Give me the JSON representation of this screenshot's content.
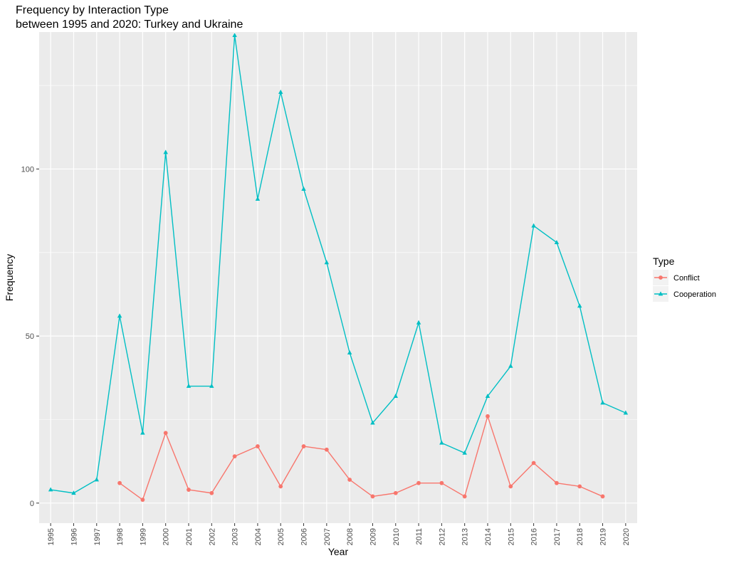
{
  "chart_data": {
    "type": "line",
    "title": "Frequency by Interaction Type",
    "subtitle": "between 1995 and 2020: Turkey and Ukraine",
    "xlabel": "Year",
    "ylabel": "Frequency",
    "ylim": [
      -6,
      141
    ],
    "y_ticks": [
      0,
      50,
      100
    ],
    "y_tick_labels": [
      "0",
      "50",
      "100"
    ],
    "grid": true,
    "legend_title": "Type",
    "legend_position": "right",
    "categories": [
      "1995",
      "1996",
      "1997",
      "1998",
      "1999",
      "2000",
      "2001",
      "2002",
      "2003",
      "2004",
      "2005",
      "2006",
      "2007",
      "2008",
      "2009",
      "2010",
      "2011",
      "2012",
      "2013",
      "2014",
      "2015",
      "2016",
      "2017",
      "2018",
      "2019",
      "2020"
    ],
    "series": [
      {
        "name": "Conflict",
        "color": "#f8766d",
        "marker": "circle",
        "values": [
          null,
          null,
          null,
          6,
          1,
          21,
          4,
          3,
          14,
          17,
          5,
          17,
          16,
          7,
          2,
          3,
          6,
          6,
          2,
          26,
          5,
          12,
          6,
          5,
          2,
          null
        ]
      },
      {
        "name": "Cooperation",
        "color": "#00bfc4",
        "marker": "triangle",
        "values": [
          4,
          3,
          7,
          56,
          21,
          105,
          35,
          35,
          140,
          91,
          123,
          94,
          72,
          45,
          24,
          32,
          54,
          18,
          15,
          32,
          41,
          83,
          78,
          59,
          30,
          27
        ]
      }
    ]
  }
}
